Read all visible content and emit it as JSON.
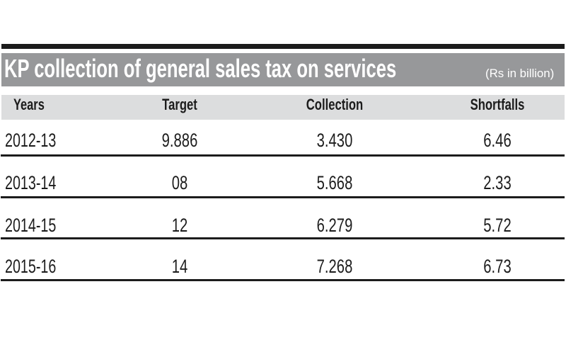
{
  "title_bar": {
    "title": "KP collection of general sales tax on services",
    "unit_note": "(Rs in billion)"
  },
  "table": {
    "columns": [
      "Years",
      "Target",
      "Collection",
      "Shortfalls"
    ],
    "rows": [
      [
        "2012-13",
        "9.886",
        "3.430",
        "6.46"
      ],
      [
        "2013-14",
        "08",
        "5.668",
        "2.33"
      ],
      [
        "2014-15",
        "12",
        "6.279",
        "5.72"
      ],
      [
        "2015-16",
        "14",
        "7.268",
        "6.73"
      ]
    ]
  },
  "colors": {
    "top_rule": "#1b1b1b",
    "title_bar_bg": "#97989a",
    "title_text": "#ffffff",
    "header_band_bg": "#dcddde",
    "body_text": "#1c1c1c",
    "divider": "#1c1c1c",
    "page_bg": "#ffffff"
  },
  "chart_data": {
    "type": "table",
    "title": "KP collection of general sales tax on services",
    "unit": "Rs in billion",
    "columns": [
      "Years",
      "Target",
      "Collection",
      "Shortfalls"
    ],
    "rows": [
      {
        "years": "2012-13",
        "target": "9.886",
        "collection": "3.430",
        "shortfalls": "6.46"
      },
      {
        "years": "2013-14",
        "target": "08",
        "collection": "5.668",
        "shortfalls": "2.33"
      },
      {
        "years": "2014-15",
        "target": "12",
        "collection": "6.279",
        "shortfalls": "5.72"
      },
      {
        "years": "2015-16",
        "target": "14",
        "collection": "7.268",
        "shortfalls": "6.73"
      }
    ]
  }
}
